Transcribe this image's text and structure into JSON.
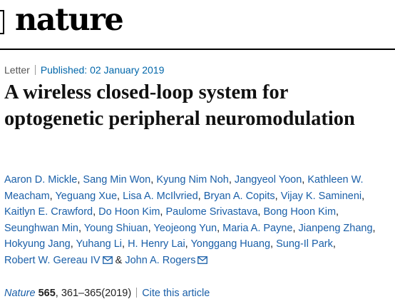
{
  "masthead": {
    "logo": "nature"
  },
  "article": {
    "type": "Letter",
    "published": "Published: 02 January 2019",
    "title": "A wireless closed-loop system for optogenetic peripheral neuromodulation"
  },
  "authors": [
    "Aaron D. Mickle",
    "Sang Min Won",
    "Kyung Nim Noh",
    "Jangyeol Yoon",
    "Kathleen W. Meacham",
    "Yeguang Xue",
    "Lisa A. McIlvried",
    "Bryan A. Copits",
    "Vijay K. Samineni",
    "Kaitlyn E. Crawford",
    "Do Hoon Kim",
    "Paulome Srivastava",
    "Bong Hoon Kim",
    "Seunghwan Min",
    "Young Shiuan",
    "Yeojeong Yun",
    "Maria A. Payne",
    "Jianpeng Zhang",
    "Hokyung Jang",
    "Yuhang Li",
    "H. Henry Lai",
    "Yonggang Huang",
    "Sung-Il Park",
    "Robert W. Gereau IV",
    "John A. Rogers"
  ],
  "authors_joiner": {
    "comma": ", ",
    "and": " & "
  },
  "citation": {
    "journal": "Nature",
    "volume": "565",
    "pages": ", 361–365(2019)",
    "cite_link": "Cite this article"
  },
  "icons": {
    "mail": "mail-icon"
  },
  "colors": {
    "link": "#1a5fa8",
    "meta_link": "#0066aa",
    "text": "#222222"
  }
}
